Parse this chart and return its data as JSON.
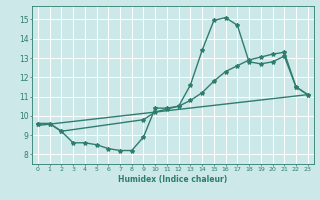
{
  "xlabel": "Humidex (Indice chaleur)",
  "background_color": "#cce8e8",
  "grid_color": "#b0d4d4",
  "line_color": "#2e7d6e",
  "xlim": [
    -0.5,
    23.5
  ],
  "ylim": [
    7.5,
    15.7
  ],
  "xticks": [
    0,
    1,
    2,
    3,
    4,
    5,
    6,
    7,
    8,
    9,
    10,
    11,
    12,
    13,
    14,
    15,
    16,
    17,
    18,
    19,
    20,
    21,
    22,
    23
  ],
  "yticks": [
    8,
    9,
    10,
    11,
    12,
    13,
    14,
    15
  ],
  "line1_x": [
    0,
    1,
    2,
    3,
    4,
    5,
    6,
    7,
    8,
    9,
    10,
    11,
    12,
    13,
    14,
    15,
    16,
    17,
    18,
    19,
    20,
    21,
    22,
    23
  ],
  "line1_y": [
    9.6,
    9.6,
    9.2,
    8.6,
    8.6,
    8.5,
    8.3,
    8.2,
    8.2,
    8.9,
    10.4,
    10.4,
    10.5,
    11.6,
    13.4,
    14.95,
    15.1,
    14.7,
    12.8,
    12.7,
    12.8,
    13.1,
    11.5,
    11.1
  ],
  "line2_x": [
    0,
    1,
    2,
    9,
    10,
    11,
    12,
    13,
    14,
    15,
    16,
    17,
    18,
    19,
    20,
    21,
    22,
    23
  ],
  "line2_y": [
    9.6,
    9.6,
    9.2,
    9.8,
    10.2,
    10.35,
    10.5,
    10.8,
    11.2,
    11.8,
    12.3,
    12.6,
    12.9,
    13.05,
    13.2,
    13.3,
    11.5,
    11.1
  ],
  "line3_x": [
    0,
    23
  ],
  "line3_y": [
    9.5,
    11.1
  ]
}
